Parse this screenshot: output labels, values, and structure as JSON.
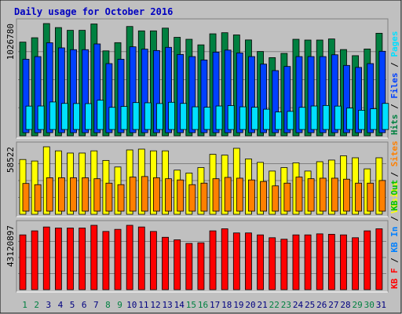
{
  "title": "Daily usage for October 2016",
  "colors": {
    "background": "#C0C0C0",
    "frame": "#000000",
    "title": "#0000C0",
    "hits": "#008040",
    "files": "#0040FF",
    "pages": "#00E0FF",
    "visits": "#FFFF00",
    "sites": "#FF8000",
    "kbf": "#FF0000",
    "kbin": "#0080FF",
    "kbout": "#00C000",
    "weekday_label": "#000080",
    "weekend_label": "#008040"
  },
  "chart_data": [
    {
      "type": "bar",
      "name": "hits-files-pages",
      "categories": [
        "1",
        "2",
        "3",
        "4",
        "5",
        "6",
        "7",
        "8",
        "9",
        "10",
        "11",
        "12",
        "13",
        "14",
        "15",
        "16",
        "17",
        "18",
        "19",
        "20",
        "21",
        "22",
        "23",
        "24",
        "25",
        "26",
        "27",
        "28",
        "29",
        "30",
        "31"
      ],
      "ymax_label": "1026780",
      "ylim": [
        0,
        1026780
      ],
      "legend": [
        {
          "label": "Hits",
          "color": "#008040",
          "sep": " / "
        },
        {
          "label": "Files",
          "color": "#0040FF",
          "sep": " / "
        },
        {
          "label": "Pages",
          "color": "#00E0FF",
          "sep": ""
        }
      ],
      "series": [
        {
          "name": "Hits",
          "color": "#008040",
          "values": [
            857000,
            897000,
            1026780,
            990000,
            965000,
            965000,
            1023000,
            777000,
            852000,
            1000000,
            960000,
            960000,
            985000,
            901000,
            883000,
            832000,
            933000,
            943000,
            923000,
            877000,
            771000,
            715000,
            754000,
            883000,
            876000,
            876000,
            886000,
            789000,
            733000,
            794000,
            938000
          ]
        },
        {
          "name": "Files",
          "color": "#0040FF",
          "values": [
            691000,
            716000,
            846000,
            798000,
            781000,
            781000,
            835000,
            650000,
            691000,
            808000,
            786000,
            773000,
            803000,
            736000,
            716000,
            684000,
            758000,
            777000,
            750000,
            716000,
            645000,
            584000,
            623000,
            716000,
            716000,
            716000,
            733000,
            633000,
            614000,
            650000,
            766000
          ]
        },
        {
          "name": "Pages",
          "color": "#00E0FF",
          "values": [
            227000,
            228000,
            267000,
            253000,
            252000,
            251000,
            284000,
            215000,
            224000,
            261000,
            259000,
            252000,
            264000,
            253000,
            220000,
            216000,
            228000,
            232000,
            220000,
            216000,
            197000,
            170000,
            176000,
            215000,
            228000,
            233000,
            227000,
            208000,
            187000,
            201000,
            253000
          ]
        }
      ]
    },
    {
      "type": "bar",
      "name": "visits-sites",
      "categories": [
        "1",
        "2",
        "3",
        "4",
        "5",
        "6",
        "7",
        "8",
        "9",
        "10",
        "11",
        "12",
        "13",
        "14",
        "15",
        "16",
        "17",
        "18",
        "19",
        "20",
        "21",
        "22",
        "23",
        "24",
        "25",
        "26",
        "27",
        "28",
        "29",
        "30",
        "31"
      ],
      "ymax_label": "58522",
      "ylim": [
        0,
        58522
      ],
      "legend": [
        {
          "label": "Visits",
          "color": "#FFFF00",
          "sep": " / "
        },
        {
          "label": "Sites",
          "color": "#FF8000",
          "sep": ""
        }
      ],
      "series": [
        {
          "name": "Visits",
          "color": "#FFFF00",
          "values": [
            47500,
            46200,
            58522,
            55000,
            53100,
            53100,
            55000,
            46700,
            41000,
            55800,
            56500,
            55000,
            55000,
            38300,
            35800,
            40500,
            52000,
            51300,
            57200,
            48000,
            45000,
            37500,
            40500,
            44600,
            37500,
            45600,
            47000,
            50700,
            49000,
            39400,
            49000
          ]
        },
        {
          "name": "Sites",
          "color": "#FF8000",
          "values": [
            25200,
            24100,
            30400,
            30400,
            30400,
            30400,
            29500,
            25500,
            24100,
            31000,
            31500,
            30400,
            29500,
            28400,
            24100,
            25500,
            29500,
            30700,
            30000,
            28400,
            27000,
            23000,
            25500,
            31000,
            29500,
            30000,
            30000,
            29100,
            25500,
            25500,
            27900
          ]
        }
      ]
    },
    {
      "type": "bar",
      "name": "traffic",
      "categories": [
        "1",
        "2",
        "3",
        "4",
        "5",
        "6",
        "7",
        "8",
        "9",
        "10",
        "11",
        "12",
        "13",
        "14",
        "15",
        "16",
        "17",
        "18",
        "19",
        "20",
        "21",
        "22",
        "23",
        "24",
        "25",
        "26",
        "27",
        "28",
        "29",
        "30",
        "31"
      ],
      "ymax_label": "43120897",
      "ylim": [
        0,
        43120897
      ],
      "legend": [
        {
          "label": "KB F",
          "color": "#FF0000",
          "sep": " / "
        },
        {
          "label": "KB In",
          "color": "#0080FF",
          "sep": " / "
        },
        {
          "label": "KB Out",
          "color": "#00C000",
          "sep": ""
        }
      ],
      "series": [
        {
          "name": "KB F",
          "color": "#FF0000",
          "values": [
            36700000,
            39400000,
            42000000,
            41300000,
            41300000,
            41300000,
            43120897,
            39000000,
            40400000,
            43120897,
            42000000,
            39000000,
            35100000,
            33400000,
            31000000,
            31400000,
            39400000,
            40800000,
            38000000,
            38000000,
            36700000,
            34800000,
            33800000,
            36700000,
            36700000,
            37400000,
            37100000,
            36700000,
            34800000,
            39400000,
            40800000
          ]
        }
      ]
    }
  ]
}
